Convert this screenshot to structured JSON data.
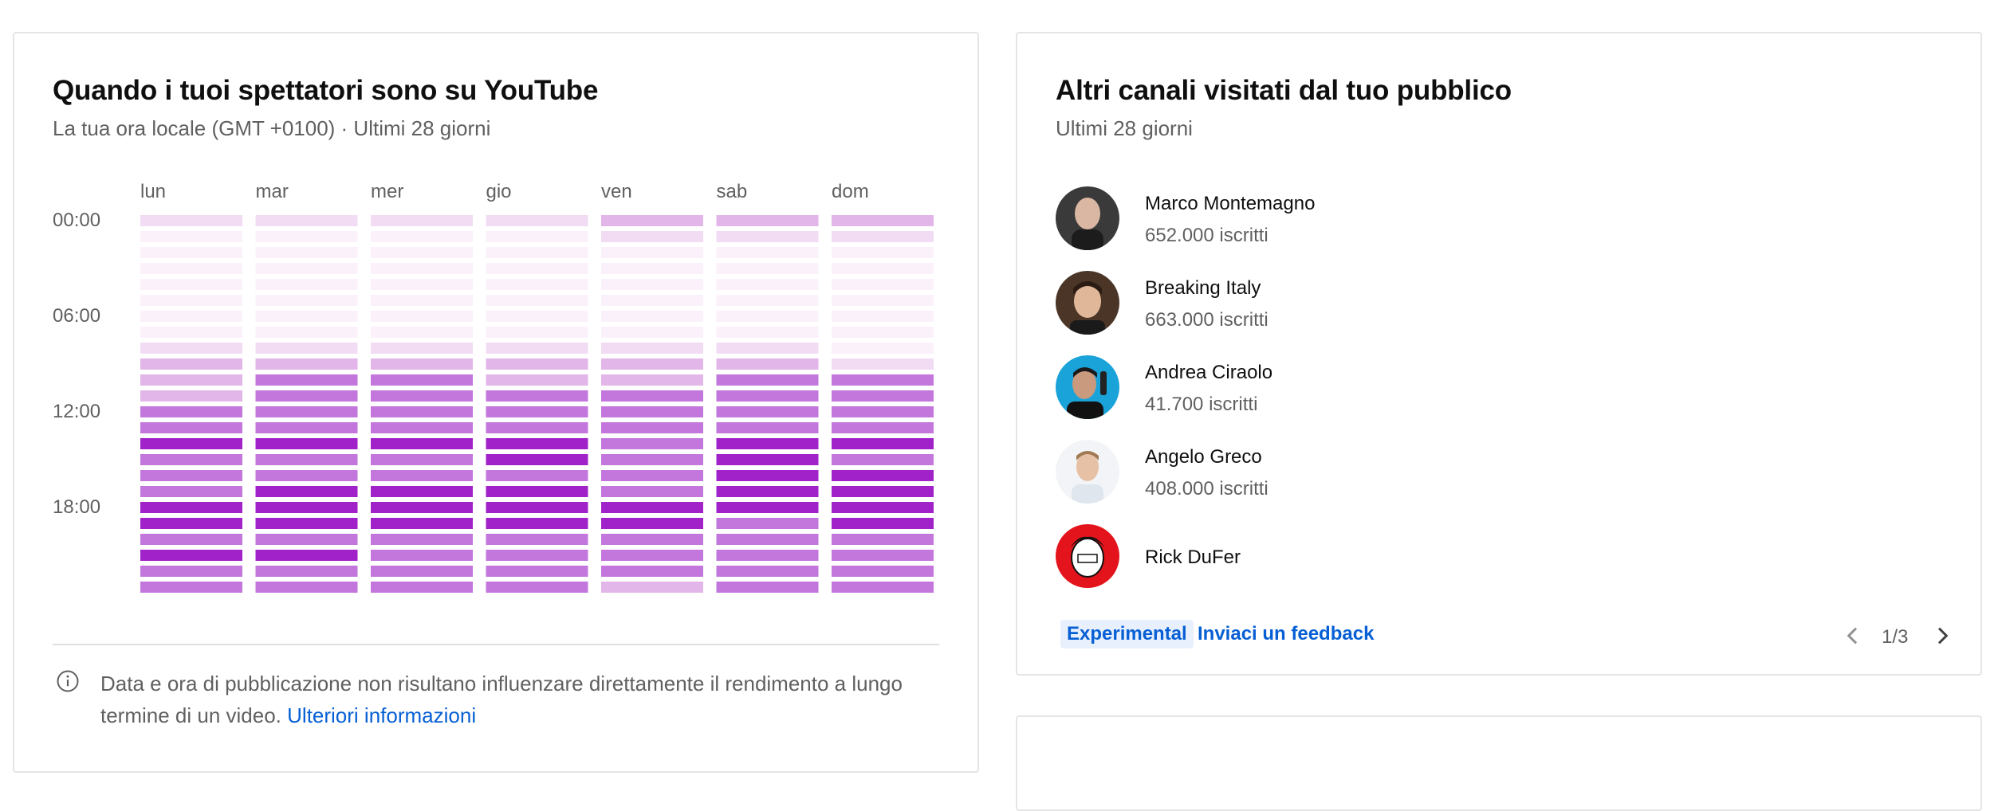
{
  "left_card": {
    "title": "Quando i tuoi spettatori sono su YouTube",
    "subtitle": "La tua ora locale (GMT +0100) · Ultimi 28 giorni",
    "info_text": "Data e ora di pubblicazione non risultano influenzare direttamente il rendimento a lungo termine di un video.",
    "info_link": "Ulteriori informazioni"
  },
  "chart_data": {
    "type": "heatmap",
    "title": "Quando i tuoi spettatori sono su YouTube",
    "days": [
      "lun",
      "mar",
      "mer",
      "gio",
      "ven",
      "sab",
      "dom"
    ],
    "hour_ticks": [
      "00:00",
      "06:00",
      "12:00",
      "18:00"
    ],
    "hours": 24,
    "levels_legend": "0 = lowest activity, 4 = highest activity",
    "colors": [
      "#faf1fb",
      "#f1dcf3",
      "#e2b6e8",
      "#c377dd",
      "#a122c9"
    ],
    "values": [
      [
        1,
        1,
        1,
        1,
        2,
        2,
        2
      ],
      [
        0,
        0,
        0,
        0,
        1,
        1,
        1
      ],
      [
        0,
        0,
        0,
        0,
        0,
        0,
        0
      ],
      [
        0,
        0,
        0,
        0,
        0,
        0,
        0
      ],
      [
        0,
        0,
        0,
        0,
        0,
        0,
        0
      ],
      [
        0,
        0,
        0,
        0,
        0,
        0,
        0
      ],
      [
        0,
        0,
        0,
        0,
        0,
        0,
        0
      ],
      [
        0,
        0,
        0,
        0,
        0,
        0,
        0
      ],
      [
        1,
        1,
        1,
        1,
        1,
        1,
        0
      ],
      [
        2,
        2,
        2,
        2,
        2,
        2,
        1
      ],
      [
        2,
        3,
        3,
        2,
        2,
        3,
        3
      ],
      [
        2,
        3,
        3,
        3,
        3,
        3,
        3
      ],
      [
        3,
        3,
        3,
        3,
        3,
        3,
        3
      ],
      [
        3,
        3,
        3,
        3,
        3,
        3,
        3
      ],
      [
        4,
        4,
        4,
        4,
        3,
        4,
        4
      ],
      [
        3,
        3,
        3,
        4,
        3,
        4,
        3
      ],
      [
        3,
        3,
        3,
        3,
        3,
        4,
        4
      ],
      [
        3,
        4,
        4,
        4,
        3,
        4,
        4
      ],
      [
        4,
        4,
        4,
        4,
        4,
        4,
        4
      ],
      [
        4,
        4,
        4,
        4,
        4,
        3,
        4
      ],
      [
        3,
        3,
        3,
        3,
        3,
        3,
        3
      ],
      [
        4,
        4,
        3,
        3,
        3,
        3,
        3
      ],
      [
        3,
        3,
        3,
        3,
        3,
        3,
        3
      ],
      [
        3,
        3,
        3,
        3,
        2,
        3,
        3
      ]
    ]
  },
  "right_card": {
    "title": "Altri canali visitati dal tuo pubblico",
    "subtitle": "Ultimi 28 giorni",
    "channels": [
      {
        "name": "Marco Montemagno",
        "subs": "652.000 iscritti",
        "avatar_color": "#8c8c8c"
      },
      {
        "name": "Breaking Italy",
        "subs": "663.000 iscritti",
        "avatar_color": "#5a3a2a"
      },
      {
        "name": "Andrea Ciraolo",
        "subs": "41.700 iscritti",
        "avatar_color": "#1aa3d9"
      },
      {
        "name": "Angelo Greco",
        "subs": "408.000 iscritti",
        "avatar_color": "#e9edf2"
      },
      {
        "name": "Rick DuFer",
        "subs": "",
        "avatar_color": "#e3141b"
      }
    ],
    "experimental_badge": "Experimental",
    "feedback_link": "Inviaci un feedback",
    "pager": "1/3"
  }
}
